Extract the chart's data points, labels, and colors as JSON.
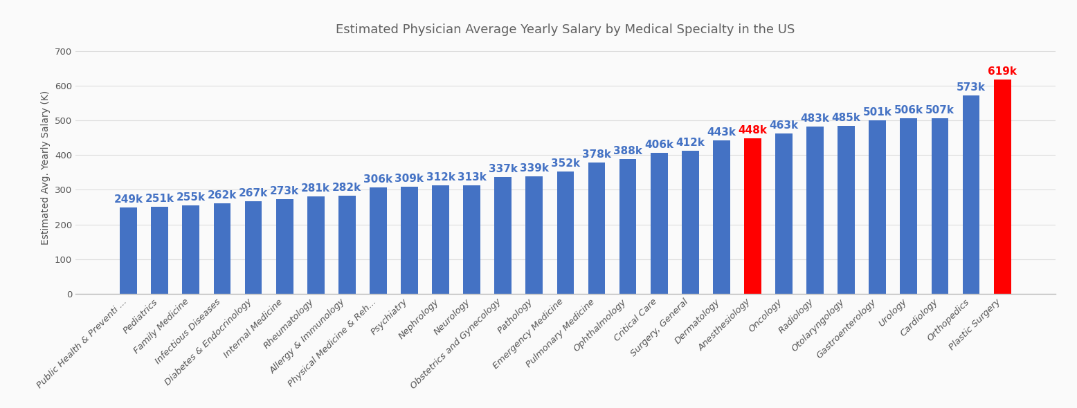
{
  "categories": [
    "Public Health & Preventi ...",
    "Pediatrics",
    "Family Medicine",
    "Infectious Diseases",
    "Diabetes & Endocrinology",
    "Internal Medicine",
    "Rheumatology",
    "Allergy & Immunology",
    "Physical Medicine & Reh...",
    "Psychiatry",
    "Nephrology",
    "Neurology",
    "Obstetrics and Gynecology",
    "Pathology",
    "Emergency Medicine",
    "Pulmonary Medicine",
    "Ophthalmology",
    "Critical Care",
    "Surgery, General",
    "Dermatology",
    "Anesthesiology",
    "Oncology",
    "Radiology",
    "Otolaryngology",
    "Gastroenterology",
    "Urology",
    "Cardiology",
    "Orthopedics",
    "Plastic Surgery"
  ],
  "values": [
    249,
    251,
    255,
    262,
    267,
    273,
    281,
    282,
    306,
    309,
    312,
    313,
    337,
    339,
    352,
    378,
    388,
    406,
    412,
    443,
    448,
    463,
    483,
    485,
    501,
    506,
    507,
    573,
    619
  ],
  "bar_colors": [
    "#4472C4",
    "#4472C4",
    "#4472C4",
    "#4472C4",
    "#4472C4",
    "#4472C4",
    "#4472C4",
    "#4472C4",
    "#4472C4",
    "#4472C4",
    "#4472C4",
    "#4472C4",
    "#4472C4",
    "#4472C4",
    "#4472C4",
    "#4472C4",
    "#4472C4",
    "#4472C4",
    "#4472C4",
    "#4472C4",
    "#FF0000",
    "#4472C4",
    "#4472C4",
    "#4472C4",
    "#4472C4",
    "#4472C4",
    "#4472C4",
    "#4472C4",
    "#FF0000"
  ],
  "label_colors": [
    "#4472C4",
    "#4472C4",
    "#4472C4",
    "#4472C4",
    "#4472C4",
    "#4472C4",
    "#4472C4",
    "#4472C4",
    "#4472C4",
    "#4472C4",
    "#4472C4",
    "#4472C4",
    "#4472C4",
    "#4472C4",
    "#4472C4",
    "#4472C4",
    "#4472C4",
    "#4472C4",
    "#4472C4",
    "#4472C4",
    "#FF0000",
    "#4472C4",
    "#4472C4",
    "#4472C4",
    "#4472C4",
    "#4472C4",
    "#4472C4",
    "#4472C4",
    "#FF0000"
  ],
  "title": "Estimated Physician Average Yearly Salary by Medical Specialty in the US",
  "ylabel": "Estimated Avg. Yearly Salary (K)",
  "ylim": [
    0,
    730
  ],
  "yticks": [
    0,
    100,
    200,
    300,
    400,
    500,
    600,
    700
  ],
  "background_color": "#FAFAFA",
  "grid_color": "#DDDDDD",
  "title_fontsize": 13,
  "label_fontsize": 11,
  "tick_fontsize": 9.5,
  "ylabel_fontsize": 10,
  "bar_width": 0.55
}
